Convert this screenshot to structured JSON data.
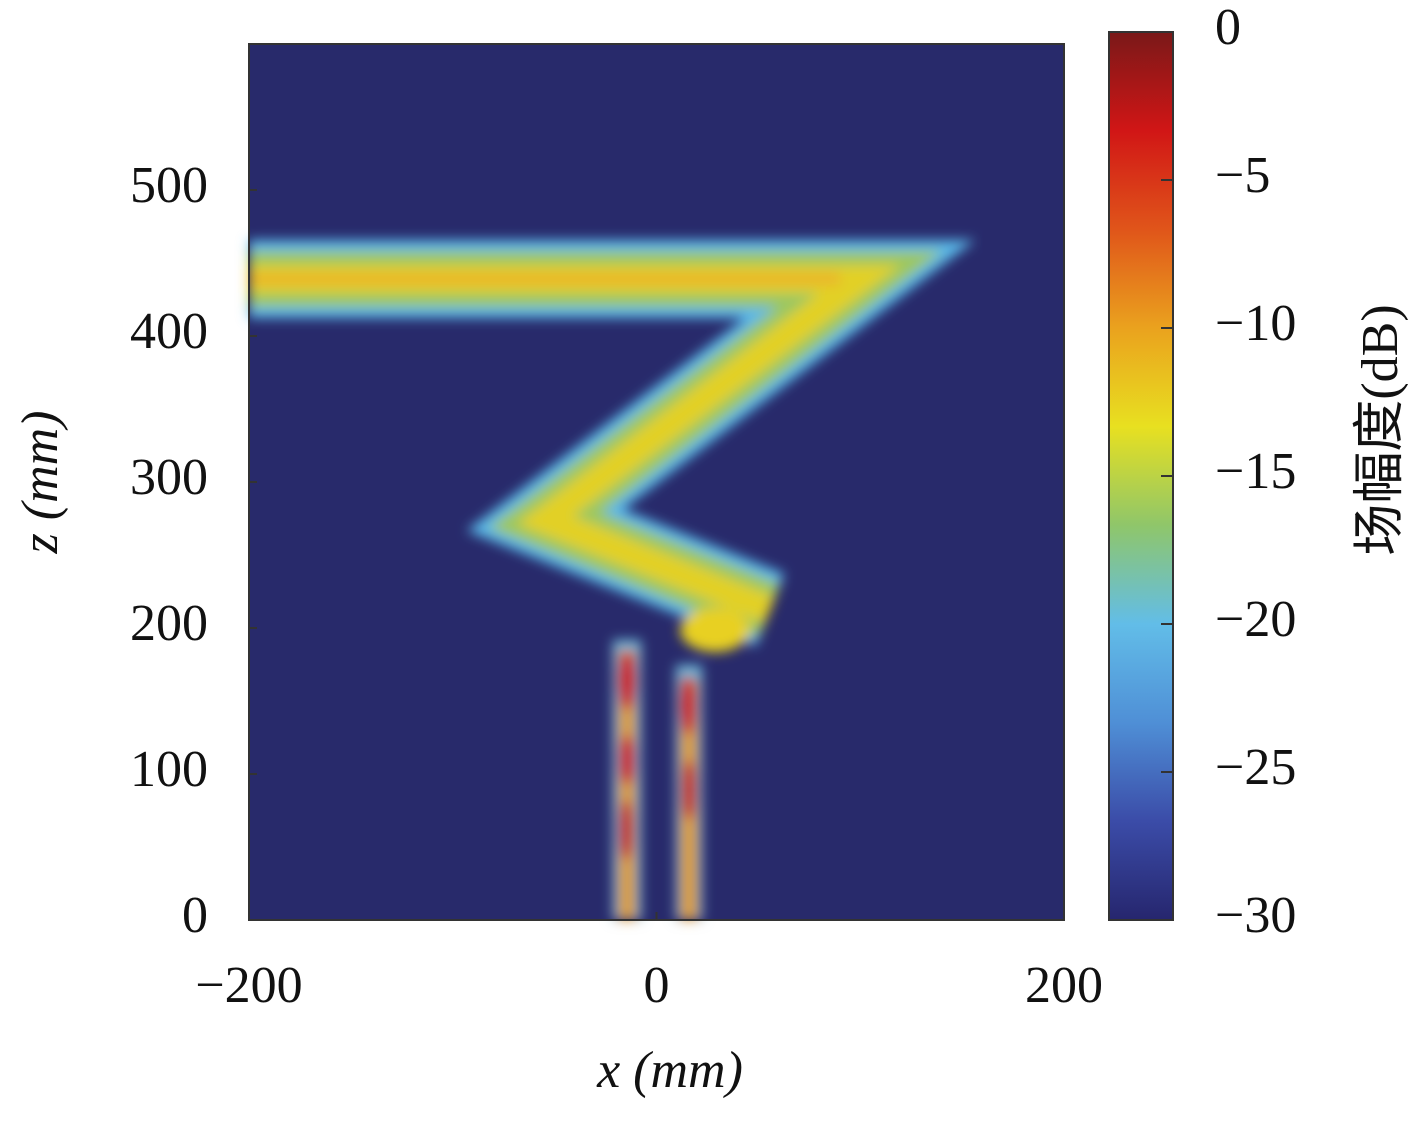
{
  "chart_data": {
    "type": "heatmap",
    "xlabel": "x (mm)",
    "ylabel": "z (mm)",
    "xlim": [
      -200,
      200
    ],
    "xticks": [
      {
        "value": -200,
        "label": "−200"
      },
      0,
      200
    ],
    "ylim": [
      0,
      600
    ],
    "yticks": [
      0,
      100,
      200,
      300,
      400,
      500
    ],
    "background_color": "#282a6b",
    "colorbar": {
      "label": "场幅度(dB)",
      "clim": [
        -30,
        0
      ],
      "ticks": [
        0,
        {
          "value": -5,
          "label": "−5"
        },
        {
          "value": -10,
          "label": "−10"
        },
        {
          "value": -15,
          "label": "−15"
        },
        {
          "value": -20,
          "label": "−20"
        },
        {
          "value": -25,
          "label": "−25"
        },
        {
          "value": -30,
          "label": "−30"
        }
      ],
      "colormap": [
        "#26266e",
        "#3b4ca8",
        "#4f8fd6",
        "#62bde8",
        "#8fc66a",
        "#e8e020",
        "#eaa21e",
        "#e0551a",
        "#d11616",
        "#7a1818"
      ]
    }
  }
}
